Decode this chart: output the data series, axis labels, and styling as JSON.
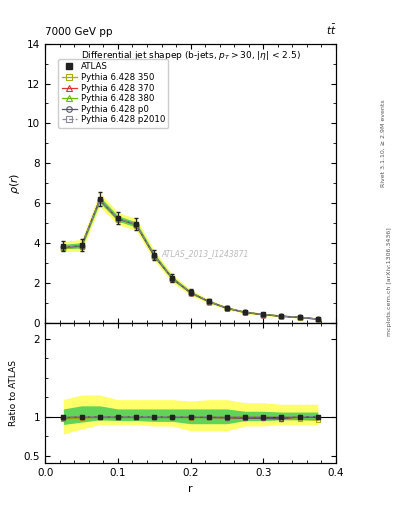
{
  "title_top_left": "7000 GeV pp",
  "title_top_right": "tt",
  "plot_title": "Differential jet shapep (b-jets, p_{T}>30, |\\eta| < 2.5)",
  "watermark": "ATLAS_2013_I1243871",
  "right_label1": "Rivet 3.1.10, ≥ 2.9M events",
  "right_label2": "mcplots.cern.ch [arXiv:1306.3436]",
  "ylabel_main": "\\rho(r)",
  "ylabel_ratio": "Ratio to ATLAS",
  "xlabel": "r",
  "r_values": [
    0.025,
    0.05,
    0.075,
    0.1,
    0.125,
    0.15,
    0.175,
    0.2,
    0.225,
    0.25,
    0.275,
    0.3,
    0.325,
    0.35,
    0.375
  ],
  "atlas_values": [
    3.85,
    3.9,
    6.2,
    5.25,
    4.95,
    3.4,
    2.25,
    1.55,
    1.1,
    0.77,
    0.56,
    0.45,
    0.37,
    0.3,
    0.22
  ],
  "atlas_errors": [
    0.25,
    0.3,
    0.35,
    0.3,
    0.3,
    0.25,
    0.2,
    0.15,
    0.1,
    0.08,
    0.07,
    0.06,
    0.05,
    0.04,
    0.03
  ],
  "pythia350_values": [
    3.75,
    3.82,
    6.17,
    5.22,
    4.93,
    3.38,
    2.24,
    1.53,
    1.09,
    0.76,
    0.55,
    0.44,
    0.36,
    0.29,
    0.21
  ],
  "pythia370_values": [
    3.8,
    3.88,
    6.18,
    5.23,
    4.94,
    3.39,
    2.24,
    1.54,
    1.09,
    0.76,
    0.55,
    0.44,
    0.36,
    0.3,
    0.22
  ],
  "pythia380_values": [
    3.78,
    3.86,
    6.18,
    5.23,
    4.94,
    3.39,
    2.25,
    1.55,
    1.1,
    0.77,
    0.56,
    0.45,
    0.37,
    0.3,
    0.22
  ],
  "pythia_p0_values": [
    3.8,
    3.88,
    6.18,
    5.23,
    4.94,
    3.39,
    2.24,
    1.54,
    1.09,
    0.76,
    0.55,
    0.44,
    0.36,
    0.3,
    0.22
  ],
  "pythia_p2010_values": [
    3.82,
    3.9,
    6.19,
    5.24,
    4.95,
    3.4,
    2.25,
    1.55,
    1.1,
    0.77,
    0.56,
    0.45,
    0.37,
    0.3,
    0.22
  ],
  "ylim_main": [
    0,
    14
  ],
  "yticks_main": [
    0,
    2,
    4,
    6,
    8,
    10,
    12,
    14
  ],
  "ylim_ratio": [
    0.4,
    2.2
  ],
  "yticks_ratio": [
    0.5,
    1.0,
    2.0
  ],
  "xlim": [
    0,
    0.4
  ],
  "xticks": [
    0,
    0.1,
    0.2,
    0.3,
    0.4
  ],
  "color_atlas": "#222222",
  "color_350": "#aaaa00",
  "color_370": "#dd3333",
  "color_380": "#66bb00",
  "color_p0": "#555566",
  "color_p2010": "#888899",
  "band_yellow": "#ffff44",
  "band_green": "#44cc55",
  "ratio_yellow_lo": [
    0.78,
    0.84,
    0.9,
    0.9,
    0.9,
    0.88,
    0.88,
    0.82,
    0.82,
    0.82,
    0.88,
    0.88,
    0.9,
    0.9,
    0.9
  ],
  "ratio_yellow_hi": [
    1.22,
    1.28,
    1.28,
    1.22,
    1.22,
    1.22,
    1.22,
    1.2,
    1.22,
    1.22,
    1.18,
    1.18,
    1.16,
    1.16,
    1.16
  ],
  "ratio_green_lo": [
    0.9,
    0.93,
    0.96,
    0.95,
    0.95,
    0.94,
    0.94,
    0.91,
    0.91,
    0.91,
    0.95,
    0.95,
    0.96,
    0.96,
    0.96
  ],
  "ratio_green_hi": [
    1.1,
    1.14,
    1.14,
    1.1,
    1.1,
    1.1,
    1.1,
    1.1,
    1.1,
    1.1,
    1.07,
    1.07,
    1.06,
    1.06,
    1.06
  ],
  "ratio_350": [
    0.975,
    0.979,
    0.995,
    0.994,
    0.996,
    0.994,
    0.996,
    0.987,
    0.991,
    0.987,
    0.982,
    0.978,
    0.973,
    0.967,
    0.955
  ],
  "ratio_370": [
    0.987,
    0.995,
    0.997,
    0.996,
    0.998,
    0.997,
    0.996,
    0.994,
    0.991,
    0.987,
    0.982,
    0.978,
    0.973,
    1.0,
    1.0
  ],
  "ratio_380": [
    0.981,
    0.99,
    0.997,
    0.996,
    0.998,
    0.997,
    1.0,
    1.0,
    1.0,
    1.0,
    1.0,
    1.0,
    1.0,
    1.0,
    1.0
  ],
  "ratio_p0": [
    0.987,
    0.995,
    0.997,
    0.996,
    0.998,
    0.997,
    0.996,
    0.994,
    0.991,
    0.987,
    0.982,
    0.978,
    0.973,
    1.0,
    1.0
  ],
  "ratio_p2010": [
    0.992,
    1.0,
    0.999,
    0.998,
    1.0,
    1.0,
    1.0,
    1.0,
    1.0,
    1.0,
    1.0,
    1.0,
    1.0,
    1.0,
    1.0
  ],
  "legend_entries": [
    "ATLAS",
    "Pythia 6.428 350",
    "Pythia 6.428 370",
    "Pythia 6.428 380",
    "Pythia 6.428 p0",
    "Pythia 6.428 p2010"
  ]
}
